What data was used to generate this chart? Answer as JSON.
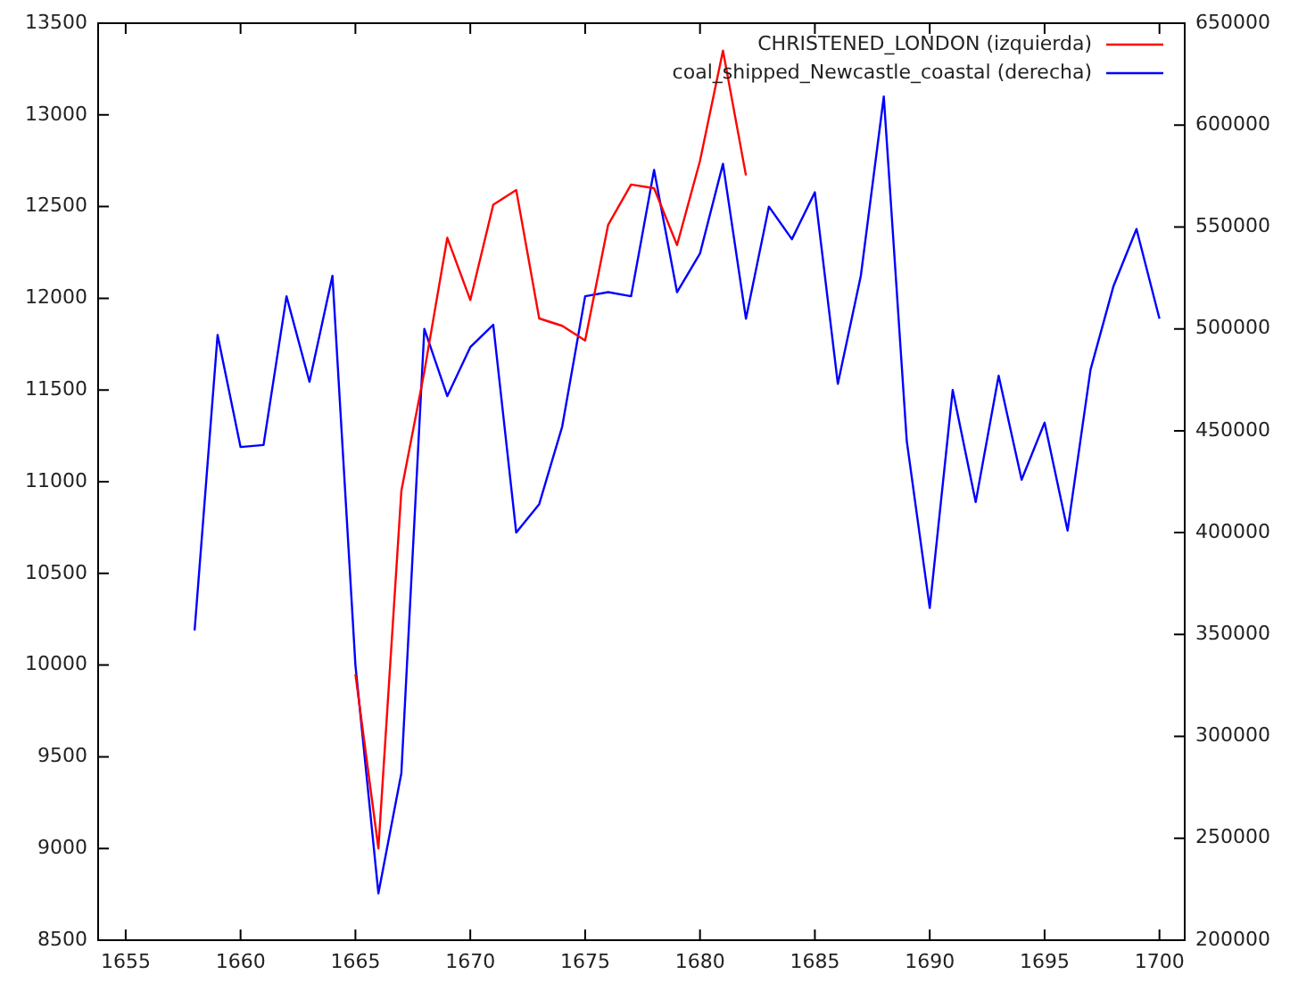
{
  "chart_data": {
    "type": "line",
    "xlim": [
      1653.8,
      1701.1
    ],
    "xticks": [
      1655,
      1660,
      1665,
      1670,
      1675,
      1680,
      1685,
      1690,
      1695,
      1700
    ],
    "ylim": [
      8500,
      13500
    ],
    "yticks": [
      8500,
      9000,
      9500,
      10000,
      10500,
      11000,
      11500,
      12000,
      12500,
      13000,
      13500
    ],
    "y2lim": [
      200000,
      650000
    ],
    "y2ticks": [
      200000,
      250000,
      300000,
      350000,
      400000,
      450000,
      500000,
      550000,
      600000,
      650000
    ],
    "legend": "top right",
    "marker": "none",
    "line_style": "solid",
    "series": [
      {
        "name": "CHRISTENED_LONDON (izquierda)",
        "color": "#ff0000",
        "x": [
          1665,
          1666,
          1667,
          1668,
          1669,
          1670,
          1671,
          1672,
          1673,
          1674,
          1675,
          1676,
          1677,
          1678,
          1679,
          1680,
          1681,
          1682
        ],
        "values": [
          9950,
          9000,
          10950,
          11600,
          12330,
          11990,
          12510,
          12590,
          11890,
          11850,
          11770,
          12400,
          12620,
          12600,
          12290,
          12750,
          13350,
          12670
        ]
      },
      {
        "name": "coal_shipped_Newcastle_coastal (derecha)",
        "color": "#0000ff",
        "axis": "y2",
        "x": [
          1658,
          1659,
          1660,
          1661,
          1662,
          1663,
          1664,
          1665,
          1666,
          1667,
          1668,
          1669,
          1670,
          1671,
          1672,
          1673,
          1674,
          1675,
          1676,
          1677,
          1678,
          1679,
          1680,
          1681,
          1682,
          1683,
          1684,
          1685,
          1686,
          1687,
          1688,
          1689,
          1690,
          1691,
          1692,
          1693,
          1694,
          1695,
          1696,
          1697,
          1698,
          1699,
          1700
        ],
        "values": [
          352000,
          497000,
          442000,
          443000,
          516000,
          474000,
          526000,
          335000,
          223000,
          282000,
          500000,
          467000,
          491000,
          502000,
          400000,
          414000,
          452000,
          516000,
          518000,
          516000,
          578000,
          518000,
          537000,
          581000,
          505000,
          560000,
          544000,
          567000,
          473000,
          526000,
          614000,
          445000,
          363000,
          470000,
          415000,
          477000,
          426000,
          454000,
          401000,
          480000,
          521000,
          549000,
          505000
        ]
      }
    ]
  }
}
